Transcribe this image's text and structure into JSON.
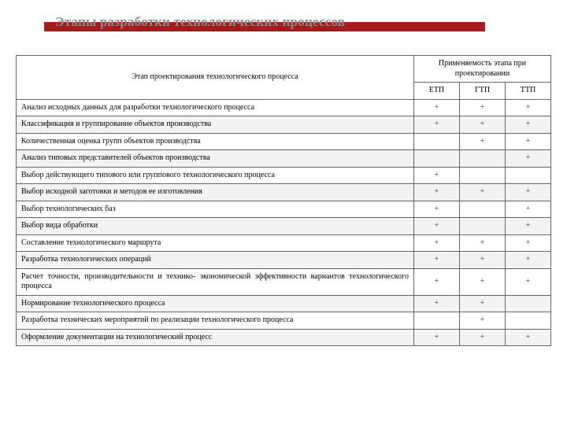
{
  "colors": {
    "banner_bar": "#a61c1c",
    "banner_text": "#8a8a8a",
    "border": "#666666",
    "row_alt_bg": "#f3f3f3",
    "background": "#ffffff",
    "text": "#000000"
  },
  "typography": {
    "title_fontsize_pt": 13,
    "table_fontsize_pt": 7.5,
    "font_family": "Times New Roman"
  },
  "banner": {
    "title": "Этапы разработки технологических процессов"
  },
  "table": {
    "header": {
      "stage": "Этап проектирования технологического процесса",
      "applicability": "Применяемость этапа при проектировании",
      "cols": [
        "ЕТП",
        "ГТП",
        "ТТП"
      ]
    },
    "rows": [
      {
        "stage": "Анализ исходных данных для разработки технологического процесса",
        "marks": [
          "+",
          "+",
          "+"
        ]
      },
      {
        "stage": "Классификация и группирование объектов производства",
        "marks": [
          "+",
          "+",
          "+"
        ]
      },
      {
        "stage": "Количественная оценка групп объектов производства",
        "marks": [
          "",
          "+",
          "+"
        ]
      },
      {
        "stage": "Анализ типовых представителей объектов производства",
        "marks": [
          "",
          "",
          "+"
        ]
      },
      {
        "stage": "Выбор действующего типового или группового технологического процесса",
        "marks": [
          "+",
          "",
          ""
        ]
      },
      {
        "stage": "Выбор исходной заготовки и методов ее изготовления",
        "marks": [
          "+",
          "+",
          "+"
        ]
      },
      {
        "stage": "Выбор технологических баз",
        "marks": [
          "+",
          "",
          "+"
        ]
      },
      {
        "stage": "Выбор вида обработки",
        "marks": [
          "+",
          "",
          "+"
        ]
      },
      {
        "stage": "Составление технологического маршрута",
        "marks": [
          "+",
          "+",
          "+"
        ]
      },
      {
        "stage": "Разработка технологических операций",
        "marks": [
          "+",
          "+",
          "+"
        ]
      },
      {
        "stage": "Расчет точности, производительности и технико- экономической эффективности вариантов технологического процесса",
        "marks": [
          "+",
          "+",
          "+"
        ]
      },
      {
        "stage": "Нормирование технологического процесса",
        "marks": [
          "+",
          "+",
          ""
        ]
      },
      {
        "stage": "Разработка технических мероприятий по реализации технологического процесса",
        "marks": [
          "",
          "+",
          ""
        ]
      },
      {
        "stage": "Оформление документации на технологический процесс",
        "marks": [
          "+",
          "+",
          "+"
        ]
      }
    ]
  }
}
